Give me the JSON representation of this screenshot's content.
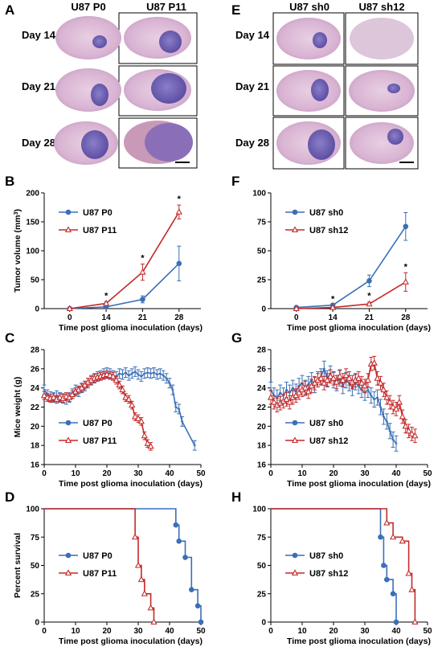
{
  "histology": [
    {
      "panel_letter": "A",
      "column_headers": [
        "U87 P0",
        "U87 P11"
      ],
      "row_labels": [
        "Day 14",
        "Day 21",
        "Day 28"
      ],
      "has_scale_bar": true
    },
    {
      "panel_letter": "E",
      "column_headers": [
        "U87 sh0",
        "U87 sh12"
      ],
      "row_labels": [
        "Day 14",
        "Day 21",
        "Day 28"
      ],
      "has_scale_bar": true
    }
  ],
  "colors": {
    "blue": "#3b6fb6",
    "red": "#c42a2a",
    "axis": "#000000"
  },
  "chart_data": [
    {
      "panel_letter": "B",
      "type": "line",
      "xlabel": "Time post glioma inoculation (days)",
      "ylabel": "Tumor volume (mm3)",
      "ylabel_parts": [
        "Tumor volume (mm",
        "3",
        ")"
      ],
      "x_ticks": [
        0,
        14,
        21,
        28
      ],
      "x_positions": "categorical",
      "ylim": [
        0,
        200
      ],
      "y_ticks": [
        0,
        50,
        100,
        150,
        200
      ],
      "legend_position": "top-left",
      "series": [
        {
          "name": "U87 P0",
          "color": "#3b6fb6",
          "marker": "circle",
          "x": [
            0,
            14,
            21,
            28
          ],
          "y": [
            0,
            3,
            16,
            78
          ],
          "err": [
            0,
            2,
            6,
            30
          ]
        },
        {
          "name": "U87 P11",
          "color": "#c42a2a",
          "marker": "triangle",
          "x": [
            0,
            14,
            21,
            28
          ],
          "y": [
            0,
            9,
            63,
            167
          ],
          "err": [
            0,
            3,
            14,
            12
          ]
        }
      ],
      "significance": [
        {
          "x": 14,
          "label": "*"
        },
        {
          "x": 21,
          "label": "*"
        },
        {
          "x": 28,
          "label": "*"
        }
      ]
    },
    {
      "panel_letter": "F",
      "type": "line",
      "xlabel": "Time post glioma inoculation (days)",
      "ylabel": "",
      "x_ticks": [
        0,
        14,
        21,
        28
      ],
      "x_positions": "categorical",
      "ylim": [
        0,
        100
      ],
      "y_ticks": [
        0,
        25,
        50,
        75,
        100
      ],
      "legend_position": "top-left",
      "series": [
        {
          "name": "U87 sh0",
          "color": "#3b6fb6",
          "marker": "circle",
          "x": [
            0,
            14,
            21,
            28
          ],
          "y": [
            1,
            3,
            24,
            71
          ],
          "err": [
            0,
            1,
            5,
            12
          ]
        },
        {
          "name": "U87 sh12",
          "color": "#c42a2a",
          "marker": "triangle",
          "x": [
            0,
            14,
            21,
            28
          ],
          "y": [
            0,
            1,
            4,
            23
          ],
          "err": [
            0,
            0.5,
            1.5,
            8
          ]
        }
      ],
      "significance": [
        {
          "x": 14,
          "label": "*"
        },
        {
          "x": 21,
          "label": "*"
        },
        {
          "x": 28,
          "label": "*"
        }
      ]
    },
    {
      "panel_letter": "C",
      "type": "line",
      "xlabel": "Time post glioma inoculation (days)",
      "ylabel": "Mice weight (g)",
      "xlim": [
        0,
        50
      ],
      "x_ticks": [
        0,
        10,
        20,
        30,
        40,
        50
      ],
      "ylim": [
        16,
        28
      ],
      "y_ticks": [
        16,
        18,
        20,
        22,
        24,
        26,
        28
      ],
      "legend_position": "bottom-left",
      "series": [
        {
          "name": "U87 P0",
          "color": "#3b6fb6",
          "marker": "dash",
          "x": [
            0,
            1,
            2,
            3,
            4,
            5,
            6,
            7,
            8,
            9,
            10,
            11,
            12,
            13,
            14,
            15,
            16,
            17,
            18,
            19,
            20,
            21,
            22,
            23,
            24,
            25,
            26,
            27,
            28,
            29,
            30,
            31,
            32,
            33,
            34,
            35,
            36,
            37,
            38,
            39,
            40,
            41,
            42,
            43,
            44,
            48
          ],
          "y": [
            23.8,
            23.3,
            23.1,
            23.0,
            23.2,
            23.0,
            22.9,
            22.8,
            23.0,
            23.4,
            23.8,
            23.6,
            24.0,
            24.2,
            24.5,
            24.8,
            25.0,
            25.2,
            25.3,
            25.5,
            25.6,
            25.5,
            25.3,
            25.2,
            25.5,
            25.4,
            25.6,
            25.3,
            25.5,
            25.7,
            25.4,
            25.2,
            25.5,
            25.6,
            25.5,
            25.6,
            25.4,
            25.5,
            25.3,
            25.0,
            24.5,
            23.8,
            22.0,
            21.8,
            20.5,
            18.0
          ],
          "err": 0.5
        },
        {
          "name": "U87 P11",
          "color": "#c42a2a",
          "marker": "triangle",
          "x": [
            0,
            1,
            2,
            3,
            4,
            5,
            6,
            7,
            8,
            9,
            10,
            11,
            12,
            13,
            14,
            15,
            16,
            17,
            18,
            19,
            20,
            21,
            22,
            23,
            24,
            25,
            26,
            27,
            28,
            29,
            30,
            31,
            32,
            33,
            34
          ],
          "y": [
            23.2,
            23.0,
            22.9,
            23.0,
            22.8,
            23.0,
            22.9,
            23.1,
            23.0,
            23.3,
            23.6,
            23.8,
            24.0,
            24.3,
            24.6,
            24.8,
            25.0,
            25.1,
            25.2,
            25.3,
            25.4,
            25.3,
            25.2,
            24.8,
            24.3,
            23.8,
            23.0,
            22.8,
            22.2,
            21.0,
            20.8,
            20.5,
            19.0,
            18.2,
            17.9
          ],
          "err": 0.4
        }
      ]
    },
    {
      "panel_letter": "G",
      "type": "line",
      "xlabel": "Time post glioma inoculation (days)",
      "ylabel": "",
      "xlim": [
        0,
        50
      ],
      "x_ticks": [
        0,
        10,
        20,
        30,
        40,
        50
      ],
      "ylim": [
        16,
        28
      ],
      "y_ticks": [
        16,
        18,
        20,
        22,
        24,
        26,
        28
      ],
      "legend_position": "bottom-left",
      "series": [
        {
          "name": "U87 sh0",
          "color": "#3b6fb6",
          "marker": "dash",
          "x": [
            0,
            1,
            2,
            3,
            4,
            5,
            6,
            7,
            8,
            9,
            10,
            11,
            12,
            13,
            14,
            15,
            16,
            17,
            18,
            19,
            20,
            21,
            22,
            23,
            24,
            25,
            26,
            27,
            28,
            29,
            30,
            31,
            32,
            33,
            34,
            35,
            36,
            37,
            38,
            39,
            40
          ],
          "y": [
            23.8,
            23.2,
            23.0,
            23.5,
            23.2,
            23.8,
            23.5,
            24.0,
            23.6,
            24.2,
            24.5,
            24.0,
            24.4,
            24.8,
            24.3,
            24.9,
            25.2,
            26.0,
            25.0,
            25.5,
            24.8,
            24.5,
            25.0,
            24.2,
            24.8,
            24.5,
            24.0,
            24.6,
            24.2,
            23.8,
            23.5,
            23.8,
            23.2,
            22.8,
            23.0,
            22.0,
            21.0,
            20.5,
            19.5,
            18.6,
            18.2
          ],
          "err": 0.8
        },
        {
          "name": "U87 sh12",
          "color": "#c42a2a",
          "marker": "triangle",
          "x": [
            0,
            1,
            2,
            3,
            4,
            5,
            6,
            7,
            8,
            9,
            10,
            11,
            12,
            13,
            14,
            15,
            16,
            17,
            18,
            19,
            20,
            21,
            22,
            23,
            24,
            25,
            26,
            27,
            28,
            29,
            30,
            31,
            32,
            33,
            34,
            35,
            36,
            37,
            38,
            39,
            40,
            41,
            42,
            43,
            44,
            45,
            46
          ],
          "y": [
            23.0,
            22.5,
            22.2,
            22.4,
            22.6,
            22.8,
            22.5,
            23.0,
            23.2,
            23.5,
            23.8,
            24.0,
            23.6,
            24.2,
            24.5,
            24.8,
            25.0,
            24.5,
            24.8,
            25.2,
            25.0,
            24.6,
            25.2,
            24.8,
            25.3,
            25.0,
            24.6,
            24.8,
            25.0,
            24.5,
            24.2,
            24.8,
            26.5,
            26.6,
            25.0,
            24.5,
            23.8,
            23.0,
            22.5,
            22.0,
            21.8,
            22.5,
            21.0,
            20.0,
            19.5,
            19.2,
            19.0
          ],
          "err": 0.7
        }
      ]
    },
    {
      "panel_letter": "D",
      "type": "line",
      "xlabel": "Time post glioma inoculation (days)",
      "ylabel": "Percent survival",
      "xlim": [
        0,
        50
      ],
      "x_ticks": [
        0,
        10,
        20,
        30,
        40,
        50
      ],
      "ylim": [
        0,
        100
      ],
      "y_ticks": [
        0,
        25,
        50,
        75,
        100
      ],
      "legend_position": "middle-left",
      "series": [
        {
          "name": "U87 P0",
          "color": "#3b6fb6",
          "marker": "circle",
          "x": [
            42,
            43,
            45,
            47,
            49,
            50
          ],
          "y": [
            85.7,
            71.4,
            57.1,
            28.6,
            14.3,
            0
          ]
        },
        {
          "name": "U87 P11",
          "color": "#c42a2a",
          "marker": "triangle",
          "x": [
            29,
            30,
            31,
            32,
            34,
            35
          ],
          "y": [
            75,
            50,
            37.5,
            25,
            12.5,
            0
          ]
        }
      ]
    },
    {
      "panel_letter": "H",
      "type": "line",
      "xlabel": "Time post glioma inoculation (days)",
      "ylabel": "",
      "xlim": [
        0,
        50
      ],
      "x_ticks": [
        0,
        10,
        20,
        30,
        40,
        50
      ],
      "ylim": [
        0,
        100
      ],
      "y_ticks": [
        0,
        25,
        50,
        75,
        100
      ],
      "legend_position": "middle-left",
      "series": [
        {
          "name": "U87 sh0",
          "color": "#3b6fb6",
          "marker": "circle",
          "x": [
            35,
            36,
            37,
            39,
            40
          ],
          "y": [
            75,
            50,
            37.5,
            25,
            0
          ]
        },
        {
          "name": "U87 sh12",
          "color": "#c42a2a",
          "marker": "triangle",
          "x": [
            37,
            39,
            42,
            44,
            45,
            46
          ],
          "y": [
            87.5,
            75,
            71.4,
            42.9,
            28.6,
            0
          ]
        }
      ]
    }
  ]
}
